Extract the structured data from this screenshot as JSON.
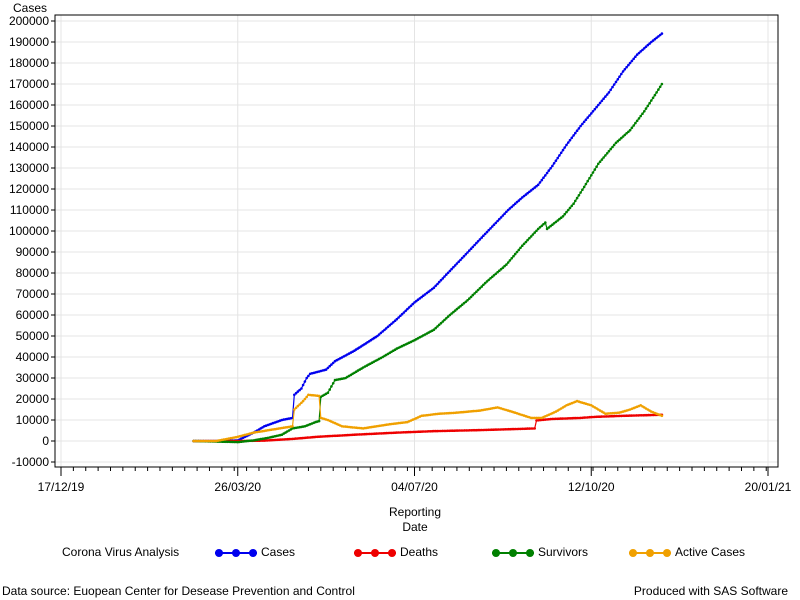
{
  "chart_data": {
    "type": "line",
    "title": "Corona Virus Analysis",
    "ylabel": "Cases",
    "xlabel_line1": "Reporting",
    "xlabel_line2": "Date",
    "ylim": [
      -10000,
      200000
    ],
    "yticks": [
      -10000,
      0,
      10000,
      20000,
      30000,
      40000,
      50000,
      60000,
      70000,
      80000,
      90000,
      100000,
      110000,
      120000,
      130000,
      140000,
      150000,
      160000,
      170000,
      180000,
      190000,
      200000
    ],
    "xlim": [
      "2019-12-17",
      "2021-01-20"
    ],
    "xticks": [
      {
        "date": "2019-12-17",
        "label": "17/12/19"
      },
      {
        "date": "2020-03-26",
        "label": "26/03/20"
      },
      {
        "date": "2020-07-04",
        "label": "04/07/20"
      },
      {
        "date": "2020-10-12",
        "label": "12/10/20"
      },
      {
        "date": "2021-01-20",
        "label": "20/01/21"
      }
    ],
    "grid": true,
    "legend_position": "bottom",
    "series": [
      {
        "name": "Cases",
        "color": "#0000ee",
        "points": [
          [
            "2020-03-01",
            0
          ],
          [
            "2020-03-14",
            0
          ],
          [
            "2020-03-26",
            300
          ],
          [
            "2020-04-04",
            4000
          ],
          [
            "2020-04-10",
            7000
          ],
          [
            "2020-04-20",
            10000
          ],
          [
            "2020-04-26",
            11000
          ],
          [
            "2020-04-27",
            22000
          ],
          [
            "2020-05-01",
            25000
          ],
          [
            "2020-05-04",
            30000
          ],
          [
            "2020-05-06",
            32000
          ],
          [
            "2020-05-15",
            34000
          ],
          [
            "2020-05-20",
            38000
          ],
          [
            "2020-05-31",
            43000
          ],
          [
            "2020-06-13",
            50000
          ],
          [
            "2020-06-24",
            58000
          ],
          [
            "2020-07-04",
            66000
          ],
          [
            "2020-07-15",
            73000
          ],
          [
            "2020-07-24",
            81000
          ],
          [
            "2020-08-01",
            88000
          ],
          [
            "2020-08-10",
            96000
          ],
          [
            "2020-08-18",
            103000
          ],
          [
            "2020-08-26",
            110000
          ],
          [
            "2020-09-03",
            116000
          ],
          [
            "2020-09-12",
            122000
          ],
          [
            "2020-09-20",
            131000
          ],
          [
            "2020-09-28",
            141000
          ],
          [
            "2020-10-06",
            150000
          ],
          [
            "2020-10-14",
            158000
          ],
          [
            "2020-10-22",
            166000
          ],
          [
            "2020-10-30",
            176000
          ],
          [
            "2020-11-07",
            184000
          ],
          [
            "2020-11-15",
            190000
          ],
          [
            "2020-11-21",
            194000
          ]
        ]
      },
      {
        "name": "Deaths",
        "color": "#ee0000",
        "points": [
          [
            "2020-03-01",
            0
          ],
          [
            "2020-03-26",
            0
          ],
          [
            "2020-04-10",
            200
          ],
          [
            "2020-04-26",
            1000
          ],
          [
            "2020-05-10",
            2000
          ],
          [
            "2020-05-31",
            3000
          ],
          [
            "2020-06-24",
            4000
          ],
          [
            "2020-07-15",
            4700
          ],
          [
            "2020-08-10",
            5200
          ],
          [
            "2020-09-03",
            5800
          ],
          [
            "2020-09-10",
            6000
          ],
          [
            "2020-09-11",
            9800
          ],
          [
            "2020-09-20",
            10500
          ],
          [
            "2020-10-06",
            11000
          ],
          [
            "2020-10-14",
            11500
          ],
          [
            "2020-10-30",
            12000
          ],
          [
            "2020-11-21",
            12500
          ]
        ]
      },
      {
        "name": "Survivors",
        "color": "#008000",
        "points": [
          [
            "2020-03-01",
            0
          ],
          [
            "2020-03-26",
            -500
          ],
          [
            "2020-04-04",
            300
          ],
          [
            "2020-04-12",
            1500
          ],
          [
            "2020-04-20",
            3000
          ],
          [
            "2020-04-26",
            6000
          ],
          [
            "2020-05-03",
            7000
          ],
          [
            "2020-05-09",
            9000
          ],
          [
            "2020-05-11",
            9500
          ],
          [
            "2020-05-12",
            21000
          ],
          [
            "2020-05-16",
            23000
          ],
          [
            "2020-05-20",
            29000
          ],
          [
            "2020-05-26",
            30000
          ],
          [
            "2020-06-05",
            35000
          ],
          [
            "2020-06-16",
            40000
          ],
          [
            "2020-06-24",
            44000
          ],
          [
            "2020-07-04",
            48000
          ],
          [
            "2020-07-15",
            53000
          ],
          [
            "2020-07-24",
            60000
          ],
          [
            "2020-08-03",
            67000
          ],
          [
            "2020-08-14",
            76000
          ],
          [
            "2020-08-25",
            84000
          ],
          [
            "2020-09-03",
            93000
          ],
          [
            "2020-09-12",
            101000
          ],
          [
            "2020-09-16",
            104000
          ],
          [
            "2020-09-17",
            101000
          ],
          [
            "2020-09-26",
            107000
          ],
          [
            "2020-10-02",
            113000
          ],
          [
            "2020-10-08",
            121000
          ],
          [
            "2020-10-16",
            132000
          ],
          [
            "2020-10-26",
            142000
          ],
          [
            "2020-11-03",
            148000
          ],
          [
            "2020-11-11",
            157000
          ],
          [
            "2020-11-18",
            166000
          ],
          [
            "2020-11-21",
            170000
          ]
        ]
      },
      {
        "name": "Active Cases",
        "color": "#f0a000",
        "points": [
          [
            "2020-03-01",
            0
          ],
          [
            "2020-03-14",
            0
          ],
          [
            "2020-03-26",
            2000
          ],
          [
            "2020-04-04",
            4000
          ],
          [
            "2020-04-15",
            5500
          ],
          [
            "2020-04-26",
            7000
          ],
          [
            "2020-04-27",
            15000
          ],
          [
            "2020-05-02",
            19000
          ],
          [
            "2020-05-05",
            22000
          ],
          [
            "2020-05-11",
            21500
          ],
          [
            "2020-05-12",
            11000
          ],
          [
            "2020-05-16",
            10000
          ],
          [
            "2020-05-24",
            7000
          ],
          [
            "2020-06-05",
            6000
          ],
          [
            "2020-06-20",
            8000
          ],
          [
            "2020-06-30",
            9000
          ],
          [
            "2020-07-08",
            12000
          ],
          [
            "2020-07-18",
            13000
          ],
          [
            "2020-07-28",
            13500
          ],
          [
            "2020-08-10",
            14500
          ],
          [
            "2020-08-20",
            16000
          ],
          [
            "2020-08-28",
            14000
          ],
          [
            "2020-09-08",
            11000
          ],
          [
            "2020-09-14",
            11000
          ],
          [
            "2020-09-22",
            14000
          ],
          [
            "2020-09-28",
            17000
          ],
          [
            "2020-10-04",
            19000
          ],
          [
            "2020-10-12",
            17000
          ],
          [
            "2020-10-20",
            13000
          ],
          [
            "2020-10-28",
            13500
          ],
          [
            "2020-11-03",
            15000
          ],
          [
            "2020-11-09",
            17000
          ],
          [
            "2020-11-15",
            14000
          ],
          [
            "2020-11-21",
            12000
          ]
        ]
      }
    ]
  },
  "footer": {
    "source": "Data source: Euopean Center for Desease Prevention and Control",
    "credit": "Produced with SAS Software"
  }
}
